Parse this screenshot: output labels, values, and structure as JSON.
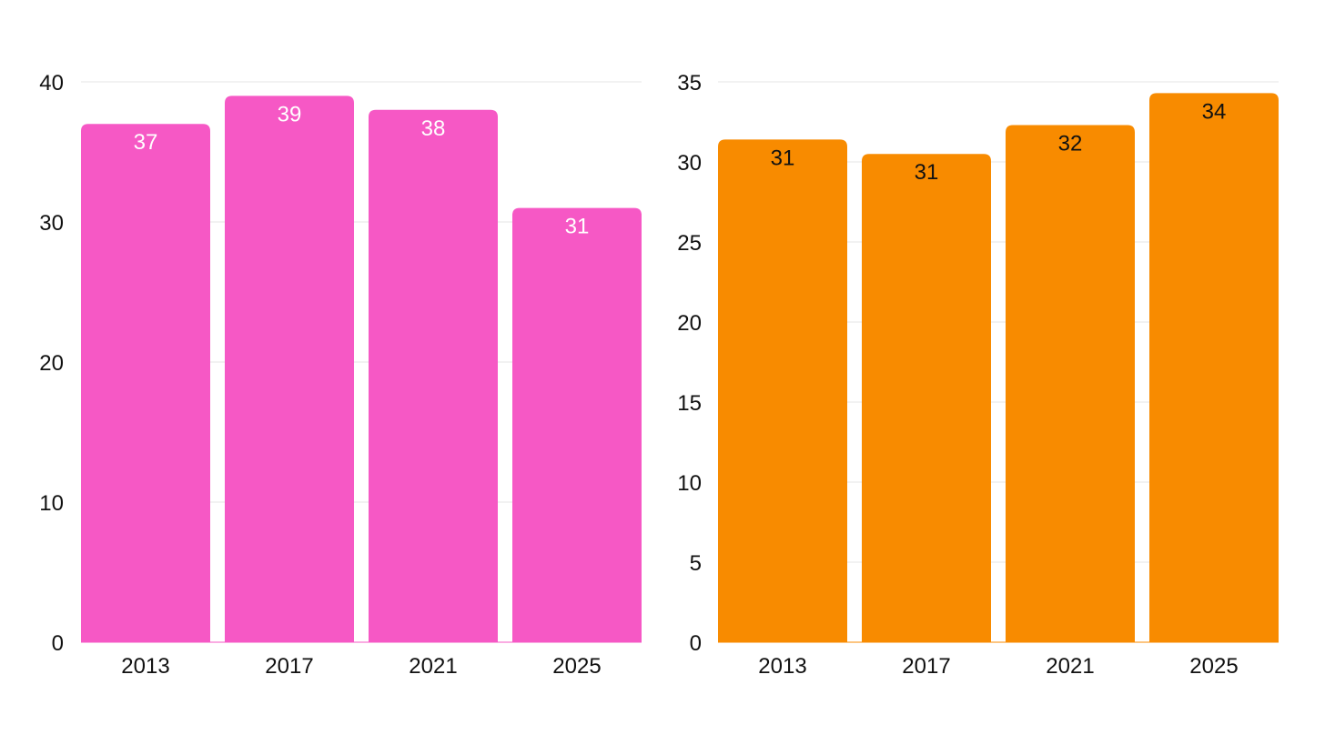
{
  "chart_data": [
    {
      "type": "bar",
      "categories": [
        "2013",
        "2017",
        "2021",
        "2025"
      ],
      "values": [
        37,
        39,
        38,
        31
      ],
      "data_labels": [
        "37",
        "39",
        "38",
        "31"
      ],
      "ylim": [
        0,
        40
      ],
      "yticks": [
        0,
        10,
        20,
        30,
        40
      ],
      "bar_color": "#f658c5",
      "label_color": "#ffffff",
      "grid": true,
      "legend": "none"
    },
    {
      "type": "bar",
      "categories": [
        "2013",
        "2017",
        "2021",
        "2025"
      ],
      "values": [
        31.4,
        30.5,
        32.3,
        34.3
      ],
      "data_labels": [
        "31",
        "31",
        "32",
        "34"
      ],
      "ylim": [
        0,
        35
      ],
      "yticks": [
        0,
        5,
        10,
        15,
        20,
        25,
        30,
        35
      ],
      "bar_color": "#f88b00",
      "label_color": "#111111",
      "grid": true,
      "legend": "none"
    }
  ]
}
